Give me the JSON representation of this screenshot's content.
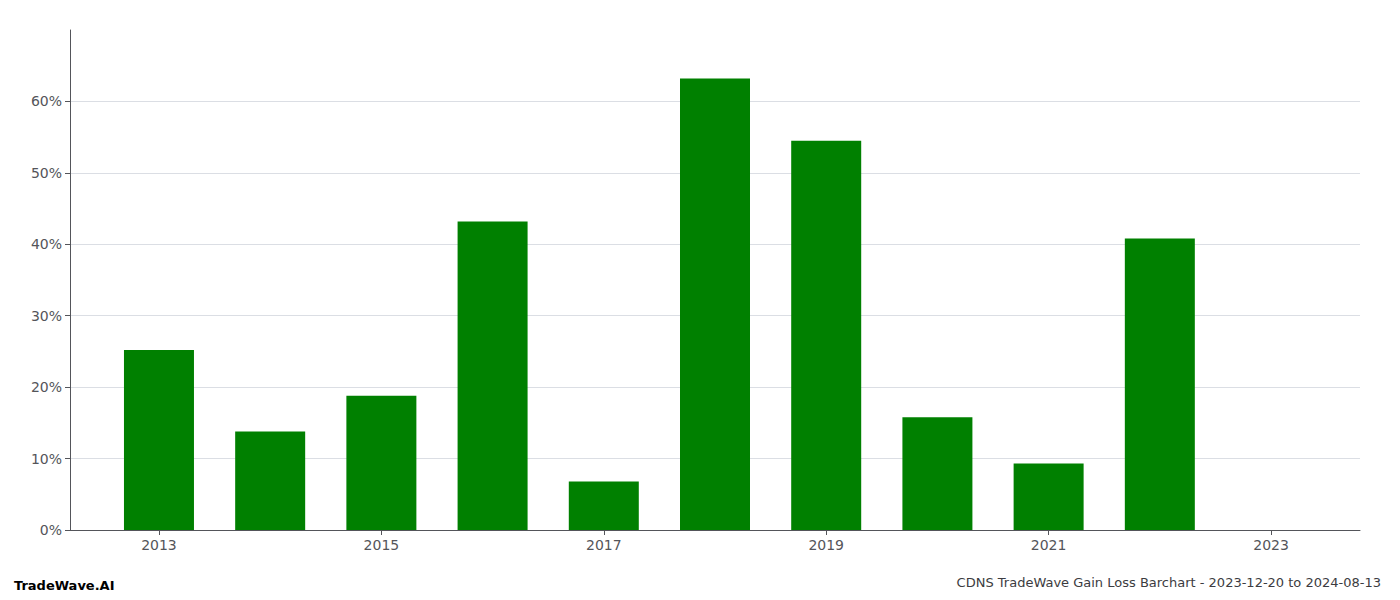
{
  "chart_data": {
    "type": "bar",
    "title": "CDNS TradeWave Gain Loss Barchart - 2023-12-20 to 2024-08-13",
    "annotations": [
      "TradeWave.AI"
    ],
    "x": [
      2013,
      2014,
      2015,
      2016,
      2017,
      2018,
      2019,
      2020,
      2021,
      2022
    ],
    "values": [
      0.252,
      0.138,
      0.188,
      0.432,
      0.068,
      0.632,
      0.545,
      0.158,
      0.093,
      0.408
    ],
    "color": "#008000",
    "xlim": [
      2012.2,
      2023.8
    ],
    "xticks": [
      2013,
      2015,
      2017,
      2019,
      2021,
      2023
    ],
    "ylim": [
      0.0,
      0.7
    ],
    "yticks": [
      {
        "value": 0.0,
        "label": "0%"
      },
      {
        "value": 0.1,
        "label": "10%"
      },
      {
        "value": 0.2,
        "label": "20%"
      },
      {
        "value": 0.3,
        "label": "30%"
      },
      {
        "value": 0.4,
        "label": "40%"
      },
      {
        "value": 0.5,
        "label": "50%"
      },
      {
        "value": 0.6,
        "label": "60%"
      }
    ],
    "grid": true
  }
}
